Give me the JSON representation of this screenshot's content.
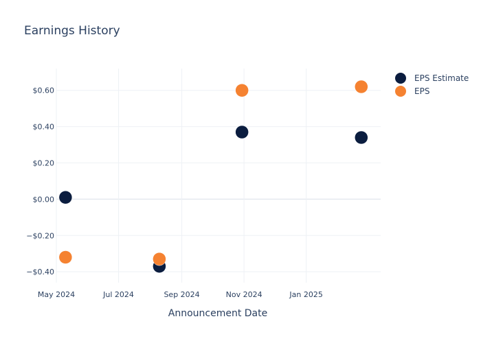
{
  "chart_data": {
    "type": "scatter",
    "title": "Earnings History",
    "xlabel": "Announcement Date",
    "ylabel": "",
    "x_ticks": [
      "2024-05-01",
      "2024-07-01",
      "2024-09-01",
      "2024-11-01",
      "2025-01-01"
    ],
    "x_tick_labels": [
      "May 2024",
      "Jul 2024",
      "Sep 2024",
      "Nov 2024",
      "Jan 2025"
    ],
    "xlim": [
      "2024-05-01",
      "2025-03-15"
    ],
    "y_ticks": [
      -0.4,
      -0.2,
      0,
      0.2,
      0.4,
      0.6
    ],
    "y_tick_labels": [
      "−$0.40",
      "−$0.20",
      "$0.00",
      "$0.20",
      "$0.40",
      "$0.60"
    ],
    "ylim": [
      -0.46,
      0.72
    ],
    "grid": true,
    "legend_position": "top-right",
    "series": [
      {
        "name": "EPS Estimate",
        "color": "#0b1d3f",
        "points": [
          {
            "x": "2024-05-10",
            "y": 0.01
          },
          {
            "x": "2024-08-10",
            "y": -0.37
          },
          {
            "x": "2024-10-30",
            "y": 0.37
          },
          {
            "x": "2025-02-24",
            "y": 0.34
          }
        ]
      },
      {
        "name": "EPS",
        "color": "#f58231",
        "points": [
          {
            "x": "2024-05-10",
            "y": -0.32
          },
          {
            "x": "2024-08-10",
            "y": -0.33
          },
          {
            "x": "2024-10-30",
            "y": 0.6
          },
          {
            "x": "2025-02-24",
            "y": 0.62
          }
        ]
      }
    ]
  }
}
